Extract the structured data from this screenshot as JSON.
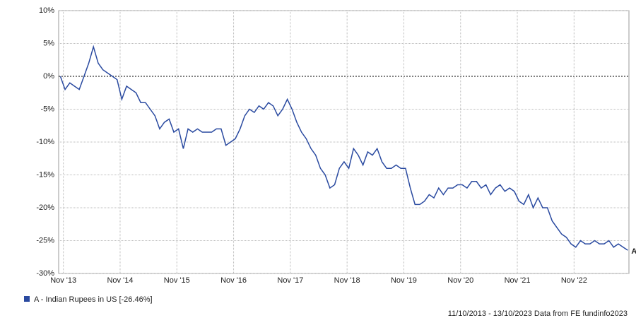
{
  "chart_data": {
    "type": "line",
    "x": [
      2013.78,
      2013.863,
      2013.947,
      2014.03,
      2014.113,
      2014.197,
      2014.28,
      2014.363,
      2014.447,
      2014.53,
      2014.613,
      2014.697,
      2014.78,
      2014.863,
      2014.947,
      2015.03,
      2015.113,
      2015.197,
      2015.28,
      2015.363,
      2015.447,
      2015.53,
      2015.613,
      2015.697,
      2015.78,
      2015.863,
      2015.947,
      2016.03,
      2016.113,
      2016.197,
      2016.28,
      2016.363,
      2016.447,
      2016.53,
      2016.613,
      2016.697,
      2016.78,
      2016.863,
      2016.947,
      2017.03,
      2017.113,
      2017.197,
      2017.28,
      2017.363,
      2017.447,
      2017.53,
      2017.613,
      2017.697,
      2017.78,
      2017.863,
      2017.947,
      2018.03,
      2018.113,
      2018.197,
      2018.28,
      2018.363,
      2018.447,
      2018.53,
      2018.613,
      2018.697,
      2018.78,
      2018.863,
      2018.947,
      2019.03,
      2019.113,
      2019.197,
      2019.28,
      2019.363,
      2019.447,
      2019.53,
      2019.613,
      2019.697,
      2019.78,
      2019.863,
      2019.947,
      2020.03,
      2020.113,
      2020.197,
      2020.28,
      2020.363,
      2020.447,
      2020.53,
      2020.613,
      2020.697,
      2020.78,
      2020.863,
      2020.947,
      2021.03,
      2021.113,
      2021.197,
      2021.28,
      2021.363,
      2021.447,
      2021.53,
      2021.613,
      2021.697,
      2021.78,
      2021.863,
      2021.947,
      2022.03,
      2022.113,
      2022.197,
      2022.28,
      2022.363,
      2022.447,
      2022.53,
      2022.613,
      2022.697,
      2022.78,
      2022.863,
      2022.947,
      2023.03,
      2023.113,
      2023.197,
      2023.28,
      2023.363,
      2023.447,
      2023.53,
      2023.613,
      2023.697,
      2023.78
    ],
    "series": [
      {
        "name": "A - Indian Rupees in US [-26.46%]",
        "color": "#2a4aa0",
        "end_label": "A",
        "values": [
          0,
          -2,
          -1,
          -1.5,
          -2,
          0,
          2,
          4.5,
          2,
          1,
          0.5,
          0,
          -0.5,
          -3.5,
          -1.5,
          -2,
          -2.5,
          -4,
          -4,
          -5,
          -6,
          -8,
          -7,
          -6.5,
          -8.5,
          -8,
          -11,
          -8,
          -8.5,
          -8,
          -8.5,
          -8.5,
          -8.5,
          -8,
          -8,
          -10.5,
          -10,
          -9.5,
          -8,
          -6,
          -5,
          -5.5,
          -4.5,
          -5,
          -4,
          -4.5,
          -6,
          -5,
          -3.5,
          -5,
          -7,
          -8.5,
          -9.5,
          -11,
          -12,
          -14,
          -15,
          -17,
          -16.5,
          -14,
          -13,
          -14,
          -11,
          -12,
          -13.5,
          -11.5,
          -12,
          -11,
          -13,
          -14,
          -14,
          -13.5,
          -14,
          -14,
          -17,
          -19.5,
          -19.5,
          -19,
          -18,
          -18.5,
          -17,
          -18,
          -17,
          -17,
          -16.5,
          -16.5,
          -17,
          -16,
          -16,
          -17,
          -16.5,
          -18,
          -17,
          -16.5,
          -17.5,
          -17,
          -17.5,
          -19,
          -19.5,
          -18,
          -20,
          -18.5,
          -20,
          -20,
          -22,
          -23,
          -24,
          -24.5,
          -25.5,
          -26,
          -25,
          -25.5,
          -25.5,
          -25,
          -25.5,
          -25.5,
          -25,
          -26,
          -25.5,
          -26,
          -26.46
        ]
      }
    ],
    "xlim": [
      2013.75,
      2023.8
    ],
    "xticks": [
      {
        "value": 2013.833,
        "label": "Nov '13"
      },
      {
        "value": 2014.833,
        "label": "Nov '14"
      },
      {
        "value": 2015.833,
        "label": "Nov '15"
      },
      {
        "value": 2016.833,
        "label": "Nov '16"
      },
      {
        "value": 2017.833,
        "label": "Nov '17"
      },
      {
        "value": 2018.833,
        "label": "Nov '18"
      },
      {
        "value": 2019.833,
        "label": "Nov '19"
      },
      {
        "value": 2020.833,
        "label": "Nov '20"
      },
      {
        "value": 2021.833,
        "label": "Nov '21"
      },
      {
        "value": 2022.833,
        "label": "Nov '22"
      }
    ],
    "ylim": [
      -30,
      10
    ],
    "yticks": [
      {
        "value": -30,
        "label": "-30%"
      },
      {
        "value": -25,
        "label": "-25%"
      },
      {
        "value": -20,
        "label": "-20%"
      },
      {
        "value": -15,
        "label": "-15%"
      },
      {
        "value": -10,
        "label": "-10%"
      },
      {
        "value": -5,
        "label": "-5%"
      },
      {
        "value": 0,
        "label": "0%"
      },
      {
        "value": 5,
        "label": "5%"
      },
      {
        "value": 10,
        "label": "10%"
      }
    ],
    "grid": true,
    "footer": "11/10/2013 - 13/10/2023 Data from FE fundinfo2023"
  }
}
